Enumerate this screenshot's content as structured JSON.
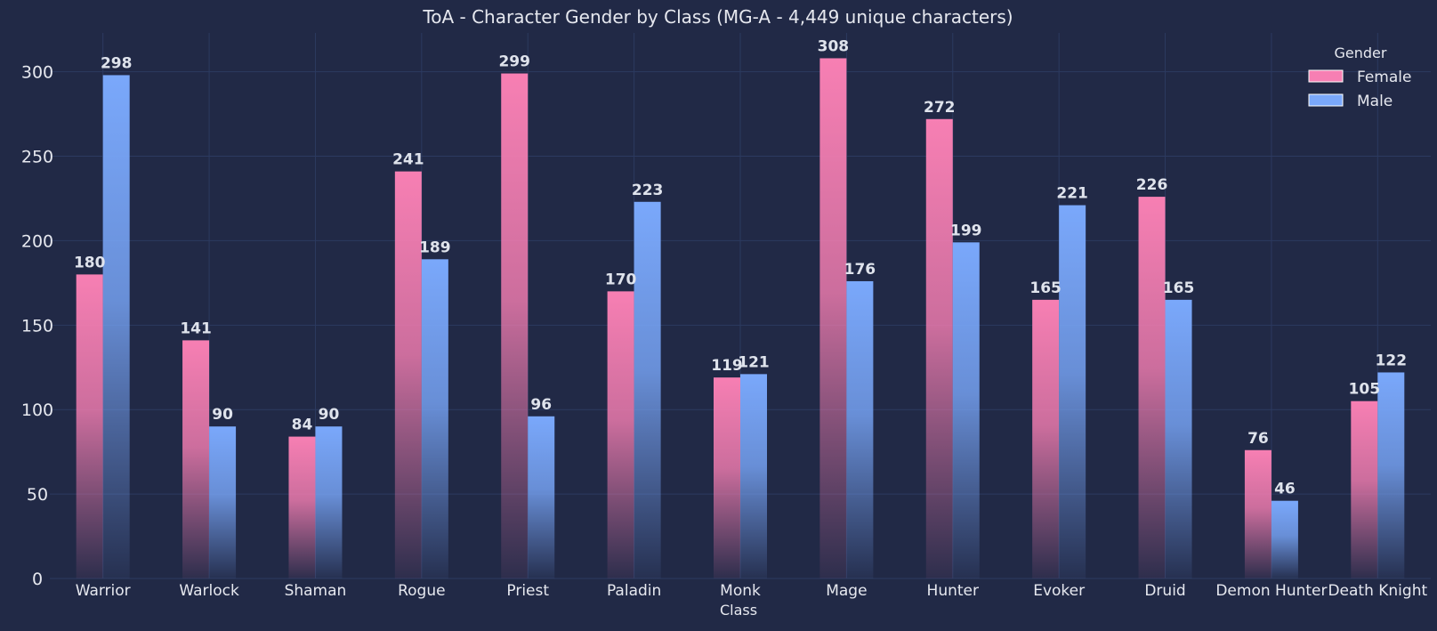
{
  "chart_data": {
    "type": "bar",
    "title": "ToA - Character Gender by Class (MG-A - 4,449 unique characters)",
    "xlabel": "Class",
    "ylabel": "",
    "categories": [
      "Warrior",
      "Warlock",
      "Shaman",
      "Rogue",
      "Priest",
      "Paladin",
      "Monk",
      "Mage",
      "Hunter",
      "Evoker",
      "Druid",
      "Demon Hunter",
      "Death Knight"
    ],
    "series": [
      {
        "name": "Female",
        "values": [
          180,
          141,
          84,
          241,
          299,
          170,
          119,
          308,
          272,
          165,
          226,
          76,
          105
        ],
        "color": "#f77fb3"
      },
      {
        "name": "Male",
        "values": [
          298,
          90,
          90,
          189,
          96,
          223,
          121,
          176,
          199,
          221,
          165,
          46,
          122
        ],
        "color": "#7aa8fb"
      }
    ],
    "ylim": [
      0,
      323
    ],
    "yticks": [
      0,
      50,
      100,
      150,
      200,
      250,
      300
    ],
    "legend": {
      "title": "Gender",
      "placement": "top-right"
    },
    "grid": true,
    "colors": {
      "background": "#212946",
      "grid": "#2c3a60",
      "text": "#e6e8ef",
      "label": "#dfe3ec"
    }
  }
}
